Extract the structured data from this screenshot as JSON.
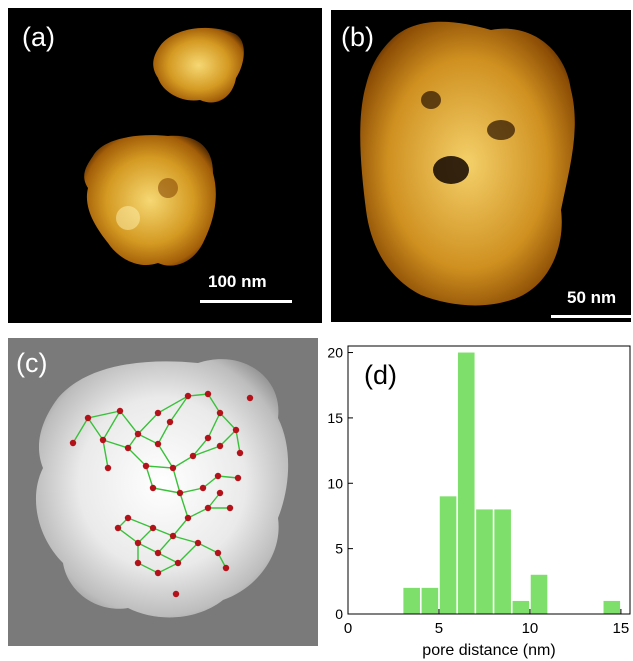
{
  "panels": {
    "a": {
      "label": "(a)",
      "scale_text": "100 nm"
    },
    "b": {
      "label": "(b)",
      "scale_text": "50 nm"
    },
    "c": {
      "label": "(c)"
    },
    "d": {
      "label": "(d)"
    }
  },
  "colors": {
    "afm_dark": "#000000",
    "afm_mid": "#c98a14",
    "afm_light": "#f2cf6a",
    "network_edge": "#39c13a",
    "network_node": "#b3121a",
    "bar_fill": "#7ee06a"
  },
  "chart_data": {
    "type": "bar",
    "title": "",
    "xlabel": "pore distance (nm)",
    "ylabel": "",
    "xlim": [
      0,
      15.5
    ],
    "ylim": [
      0,
      20.5
    ],
    "xticks": [
      0,
      5,
      10,
      15
    ],
    "yticks": [
      0,
      5,
      10,
      15,
      20
    ],
    "bin_width": 1,
    "x": [
      3.5,
      4.5,
      5.5,
      6.5,
      7.5,
      8.5,
      9.5,
      10.5,
      11.5,
      14.5
    ],
    "values": [
      2,
      2,
      9,
      20,
      8,
      8,
      1,
      3,
      0,
      1
    ],
    "grid": false
  }
}
